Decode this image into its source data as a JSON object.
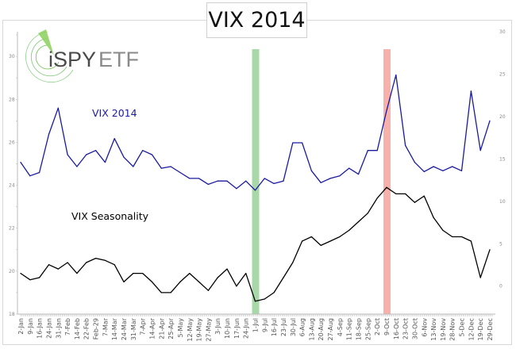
{
  "chart_data": {
    "type": "line",
    "title": "VIX 2014",
    "x": [
      "2-Jan",
      "9-Jan",
      "16-Jan",
      "24-Jan",
      "31-Jan",
      "7-Feb",
      "14-Feb",
      "22-Feb",
      "Feb-29",
      "7-Mar",
      "14-Mar",
      "24-Mar",
      "31-Mar",
      "7-Apr",
      "14-Apr",
      "21-Apr",
      "25-Apr",
      "5-May",
      "12-May",
      "19-May",
      "27-May",
      "3-Jun",
      "10-Jun",
      "17-Jun",
      "24-Jun",
      "1-Jul",
      "9-Jul",
      "16-Jul",
      "23-Jul",
      "30-Jul",
      "6-Aug",
      "13-Aug",
      "20-Aug",
      "27-Aug",
      "4-Sep",
      "11-Sep",
      "18-Sep",
      "25-Sep",
      "2-Oct",
      "9-Oct",
      "16-Oct",
      "23-Oct",
      "30-Oct",
      "6-Nov",
      "13-Nov",
      "19-Nov",
      "28-Nov",
      "5-Dec",
      "12-Dec",
      "19-Dec",
      "29-Dec"
    ],
    "series": [
      {
        "name": "VIX 2014",
        "axis": "right",
        "color": "#1a1aa0",
        "values": [
          14.6,
          13.0,
          13.4,
          17.9,
          21.0,
          15.5,
          14.1,
          15.5,
          16.0,
          14.6,
          17.4,
          15.2,
          14.1,
          16.0,
          15.5,
          13.9,
          14.1,
          13.4,
          12.7,
          12.7,
          12.0,
          12.4,
          12.4,
          11.5,
          12.4,
          11.3,
          12.7,
          12.1,
          12.4,
          16.9,
          16.9,
          13.6,
          12.2,
          12.7,
          13.0,
          13.9,
          13.2,
          16.0,
          16.0,
          20.7,
          24.9,
          16.6,
          14.6,
          13.5,
          14.1,
          13.6,
          14.1,
          13.6,
          23.0,
          16.0,
          19.5
        ]
      },
      {
        "name": "VIX Seasonality",
        "axis": "left",
        "color": "#000000",
        "values": [
          19.9,
          19.6,
          19.7,
          20.3,
          20.1,
          20.4,
          19.9,
          20.4,
          20.6,
          20.5,
          20.3,
          19.5,
          19.9,
          19.9,
          19.5,
          19.0,
          19.0,
          19.5,
          19.9,
          19.5,
          19.1,
          19.7,
          20.1,
          19.3,
          19.9,
          18.6,
          18.7,
          19.0,
          19.7,
          20.4,
          21.4,
          21.6,
          21.2,
          21.4,
          21.6,
          21.9,
          22.3,
          22.7,
          23.4,
          23.9,
          23.6,
          23.6,
          23.2,
          23.5,
          22.5,
          21.9,
          21.6,
          21.6,
          21.4,
          19.7,
          21.0
        ]
      }
    ],
    "left_axis": {
      "ticks": [
        18,
        20,
        22,
        24,
        26,
        28,
        30
      ],
      "ylim": [
        18,
        31.15
      ]
    },
    "right_axis": {
      "ticks": [
        0,
        5,
        10,
        15,
        20,
        25,
        30
      ],
      "ylim": [
        -3.3,
        30
      ]
    },
    "highlight_bands": [
      {
        "at": "1-Jul",
        "color": "#a8d8a8"
      },
      {
        "at": "9-Oct",
        "color": "#f8b0aa"
      }
    ],
    "annotations": [
      "VIX 2014",
      "VIX Seasonality"
    ],
    "grid": false,
    "legend": "none"
  },
  "logo": {
    "text_dark": "iSPY",
    "text_light": "ETF",
    "text": "iSPYETF",
    "green": "#6cc04a"
  }
}
